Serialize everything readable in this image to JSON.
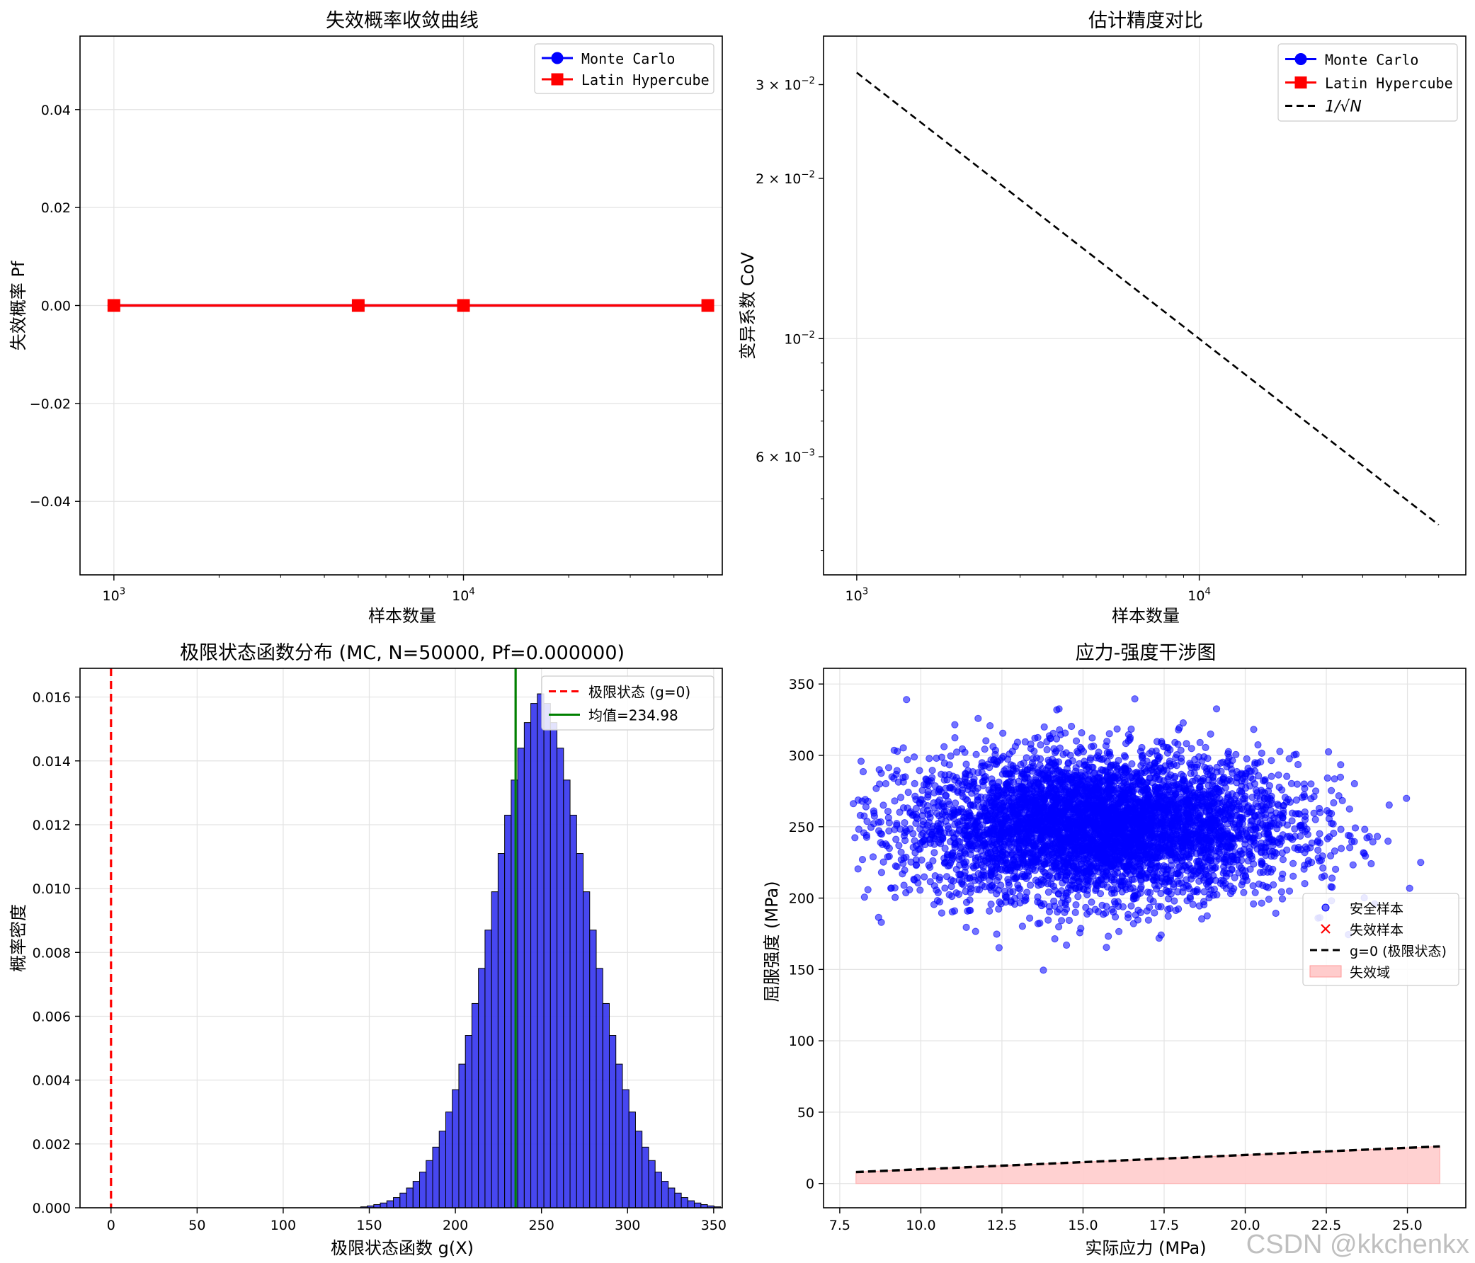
{
  "watermark": "CSDN @kkchenkx",
  "colors": {
    "mc": "#0000ff",
    "lhs": "#ff0000",
    "hist": "#3333ee",
    "mean": "#008000",
    "fail_fill": "#ffcccc",
    "grid": "#e3e3e3"
  },
  "chart_data": [
    {
      "type": "line",
      "title": "失效概率收敛曲线",
      "xlabel": "样本数量",
      "ylabel": "失效概率 Pf",
      "xscale": "log",
      "xlim": [
        800,
        55000
      ],
      "ylim": [
        -0.055,
        0.055
      ],
      "yticks": [
        0.04,
        0.02,
        0.0,
        -0.02,
        -0.04
      ],
      "ytick_labels": [
        "0.04",
        "0.02",
        "0.00",
        "−0.02",
        "−0.04"
      ],
      "xtick_labels": [
        {
          "base": "10",
          "exp": "3",
          "value": 1000
        },
        {
          "base": "10",
          "exp": "4",
          "value": 10000
        }
      ],
      "legend": {
        "loc": "upper right",
        "entries": [
          {
            "label": "Monte Carlo",
            "marker": "circle",
            "color": "#0000ff"
          },
          {
            "label": "Latin Hypercube",
            "marker": "square",
            "color": "#ff0000"
          }
        ]
      },
      "series": [
        {
          "name": "Monte Carlo",
          "x": [
            1000,
            5000,
            10000,
            50000
          ],
          "y": [
            0,
            0,
            0,
            0
          ],
          "color": "#0000ff",
          "marker": "circle"
        },
        {
          "name": "Latin Hypercube",
          "x": [
            1000,
            5000,
            10000,
            50000
          ],
          "y": [
            0,
            0,
            0,
            0
          ],
          "color": "#ff0000",
          "marker": "square"
        }
      ]
    },
    {
      "type": "line",
      "title": "估计精度对比",
      "xlabel": "样本数量",
      "ylabel": "变异系数 CoV",
      "xscale": "log",
      "yscale": "log",
      "xlim": [
        800,
        60000
      ],
      "ylim": [
        0.0036,
        0.037
      ],
      "ytick_labels": [
        {
          "mant": "3 × ",
          "base": "10",
          "exp": "−2",
          "value": 0.03
        },
        {
          "mant": "2 × ",
          "base": "10",
          "exp": "−2",
          "value": 0.02
        },
        {
          "mant": "",
          "base": "10",
          "exp": "−2",
          "value": 0.01
        },
        {
          "mant": "6 × ",
          "base": "10",
          "exp": "−3",
          "value": 0.006
        }
      ],
      "xtick_labels": [
        {
          "base": "10",
          "exp": "3",
          "value": 1000
        },
        {
          "base": "10",
          "exp": "4",
          "value": 10000
        }
      ],
      "legend": {
        "loc": "upper right",
        "entries": [
          {
            "label": "Monte Carlo",
            "marker": "circle",
            "color": "#0000ff"
          },
          {
            "label": "Latin Hypercube",
            "marker": "square",
            "color": "#ff0000"
          },
          {
            "label": "1/√N",
            "style": "dashed",
            "color": "#000000"
          }
        ]
      },
      "series": [
        {
          "name": "1/√N",
          "x": [
            1000,
            50000
          ],
          "y": [
            0.0316,
            0.00447
          ],
          "color": "#000000",
          "style": "dashed"
        }
      ]
    },
    {
      "type": "bar",
      "title": "极限状态函数分布 (MC, N=50000, Pf=0.000000)",
      "xlabel": "极限状态函数 g(X)",
      "ylabel": "概率密度",
      "xlim": [
        -18,
        355
      ],
      "ylim": [
        0,
        0.0169
      ],
      "xticks": [
        0,
        50,
        100,
        150,
        200,
        250,
        300,
        350
      ],
      "yticks": [
        0.0,
        0.002,
        0.004,
        0.006,
        0.008,
        0.01,
        0.012,
        0.014,
        0.016
      ],
      "ytick_labels": [
        "0.000",
        "0.002",
        "0.004",
        "0.006",
        "0.008",
        "0.010",
        "0.012",
        "0.014",
        "0.016"
      ],
      "bin_start": 145,
      "bin_width": 3.8,
      "values": [
        3e-05,
        6e-05,
        0.0001,
        0.00015,
        0.00022,
        0.00032,
        0.00046,
        0.00062,
        0.00083,
        0.00112,
        0.00148,
        0.0019,
        0.0024,
        0.003,
        0.0037,
        0.0045,
        0.0054,
        0.0064,
        0.0075,
        0.0087,
        0.0099,
        0.0111,
        0.0123,
        0.0134,
        0.0144,
        0.0152,
        0.0158,
        0.0161,
        0.0158,
        0.0152,
        0.0144,
        0.0134,
        0.0123,
        0.0111,
        0.0099,
        0.0087,
        0.0075,
        0.0064,
        0.0054,
        0.0045,
        0.0037,
        0.003,
        0.0024,
        0.0019,
        0.00148,
        0.00112,
        0.00083,
        0.00062,
        0.00046,
        0.00032,
        0.00022,
        0.00015,
        0.0001,
        6e-05,
        3e-05
      ],
      "limit_state_x": 0,
      "mean": 234.98,
      "legend": {
        "loc": "upper right",
        "entries": [
          {
            "label": "极限状态 (g=0)",
            "style": "dashed",
            "color": "#ff0000"
          },
          {
            "label": "均值=234.98",
            "style": "solid",
            "color": "#008000"
          }
        ]
      }
    },
    {
      "type": "scatter",
      "title": "应力-强度干涉图",
      "xlabel": "实际应力 (MPa)",
      "ylabel": "屈服强度 (MPa)",
      "xlim": [
        7.0,
        26.8
      ],
      "ylim": [
        -17,
        361
      ],
      "xticks": [
        7.5,
        10.0,
        12.5,
        15.0,
        17.5,
        20.0,
        22.5,
        25.0
      ],
      "xtick_labels": [
        "7.5",
        "10.0",
        "12.5",
        "15.0",
        "17.5",
        "20.0",
        "22.5",
        "25.0"
      ],
      "yticks": [
        0,
        50,
        100,
        150,
        200,
        250,
        300,
        350
      ],
      "scatter_safe": {
        "name": "安全样本",
        "n": 5000,
        "x_mean": 15.5,
        "x_std": 3.0,
        "y_mean": 250,
        "y_std": 25,
        "color": "#0000ff"
      },
      "scatter_fail": {
        "name": "失效样本",
        "n": 0,
        "color": "#ff0000"
      },
      "limit_line": {
        "name": "g=0 (极限状态)",
        "x": [
          8.0,
          26.0
        ],
        "y": [
          8.0,
          26.0
        ]
      },
      "fail_region": {
        "name": "失效域"
      },
      "legend": {
        "loc": "center right",
        "entries": [
          {
            "label": "安全样本",
            "marker": "dot",
            "color": "#0000ff"
          },
          {
            "label": "失效样本",
            "marker": "x",
            "color": "#ff0000"
          },
          {
            "label": "g=0 (极限状态)",
            "style": "dashed",
            "color": "#000000"
          },
          {
            "label": "失效域",
            "style": "patch",
            "color": "#ffcccc"
          }
        ]
      }
    }
  ]
}
